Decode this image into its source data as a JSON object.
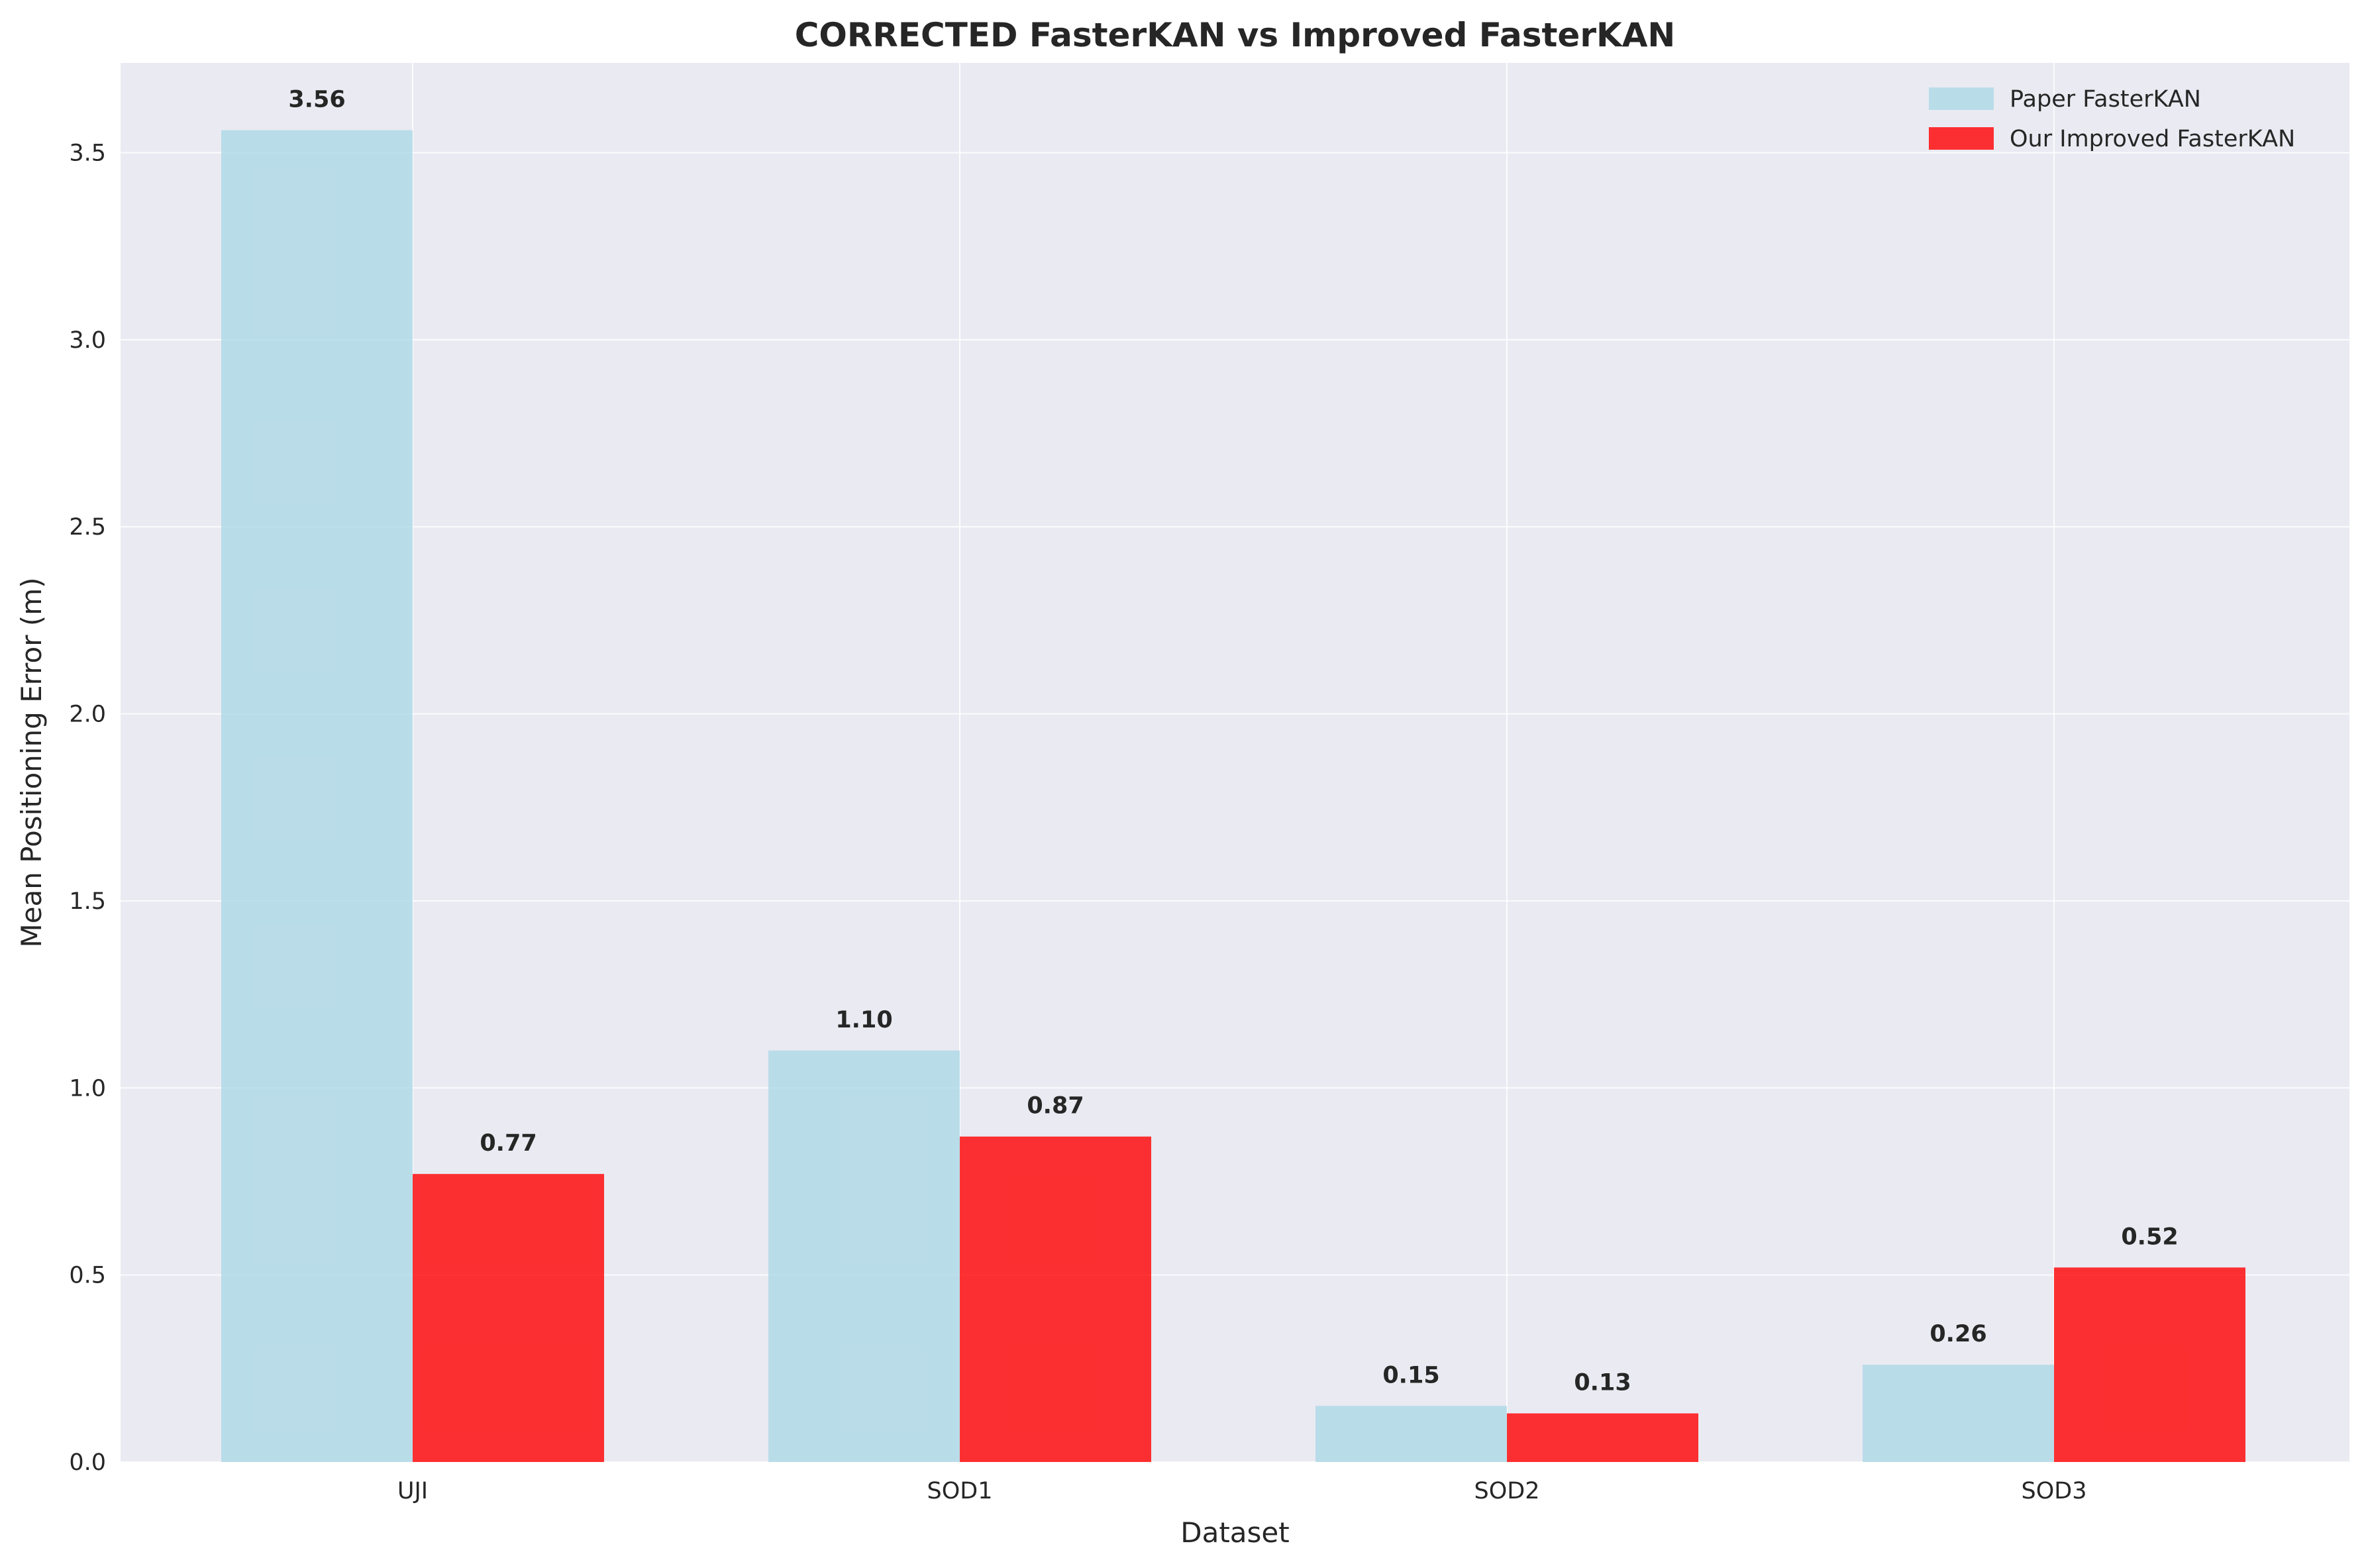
{
  "chart_data": {
    "type": "bar",
    "title": "CORRECTED FasterKAN vs Improved FasterKAN",
    "xlabel": "Dataset",
    "ylabel": "Mean Positioning Error (m)",
    "categories": [
      "UJI",
      "SOD1",
      "SOD2",
      "SOD3"
    ],
    "series": [
      {
        "name": "Paper FasterKAN",
        "values": [
          3.56,
          1.1,
          0.15,
          0.26
        ],
        "labels": [
          "3.56",
          "1.10",
          "0.15",
          "0.26"
        ],
        "color": "#add8e6"
      },
      {
        "name": "Our Improved FasterKAN",
        "values": [
          0.77,
          0.87,
          0.13,
          0.52
        ],
        "labels": [
          "0.77",
          "0.87",
          "0.13",
          "0.52"
        ],
        "color": "#ff0000"
      }
    ],
    "ylim": [
      0,
      3.74
    ],
    "yticks": [
      "0.0",
      "0.5",
      "1.0",
      "1.5",
      "2.0",
      "2.5",
      "3.0",
      "3.5"
    ],
    "grid": true,
    "legend_position": "top-right",
    "background_color": "#eaeaf2",
    "grid_color": "#ffffff"
  }
}
